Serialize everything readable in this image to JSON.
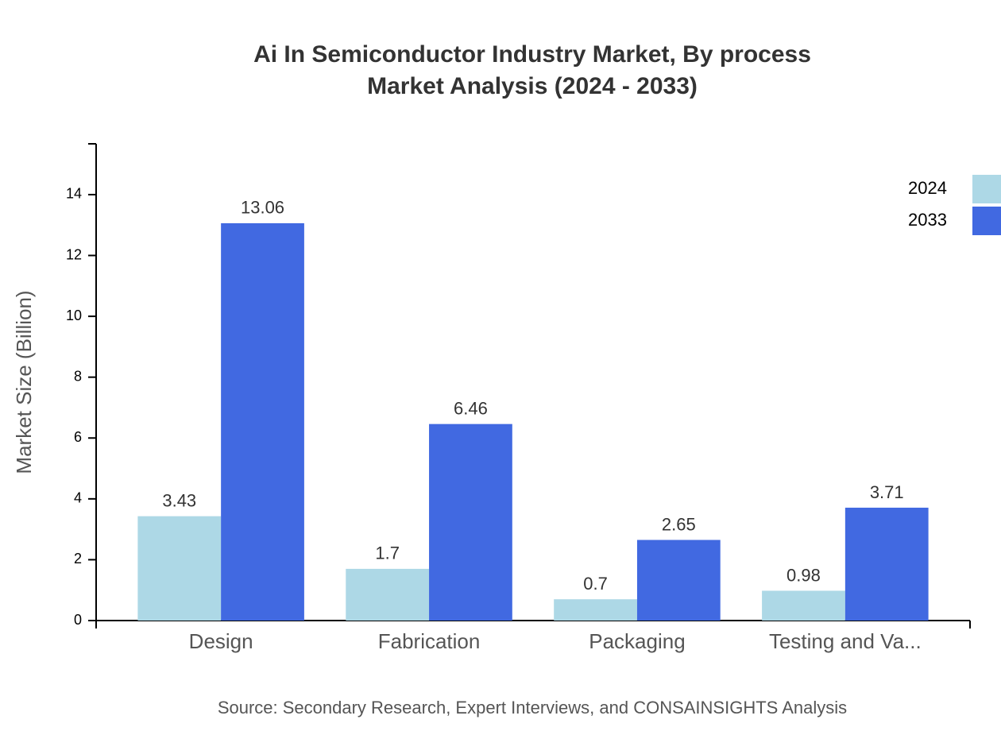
{
  "chart_data": {
    "type": "bar",
    "title": "Ai In Semiconductor Industry Market, By process",
    "subtitle": "Market Analysis (2024 - 2033)",
    "y_label": "Market Size (Billion)",
    "source": "Source: Secondary Research, Expert Interviews, and CONSAINSIGHTS Analysis",
    "categories": [
      "Design",
      "Fabrication",
      "Packaging",
      "Testing and Va..."
    ],
    "series": [
      {
        "name": "2024",
        "color": "#add8e6",
        "values": [
          3.43,
          1.7,
          0.7,
          0.98
        ]
      },
      {
        "name": "2033",
        "color": "#4169e1",
        "values": [
          13.06,
          6.46,
          2.65,
          3.71
        ]
      }
    ],
    "ylim": [
      0,
      15.67
    ],
    "yticks": [
      0,
      2,
      4,
      6,
      8,
      10,
      12,
      14
    ],
    "legend": "top-right"
  }
}
